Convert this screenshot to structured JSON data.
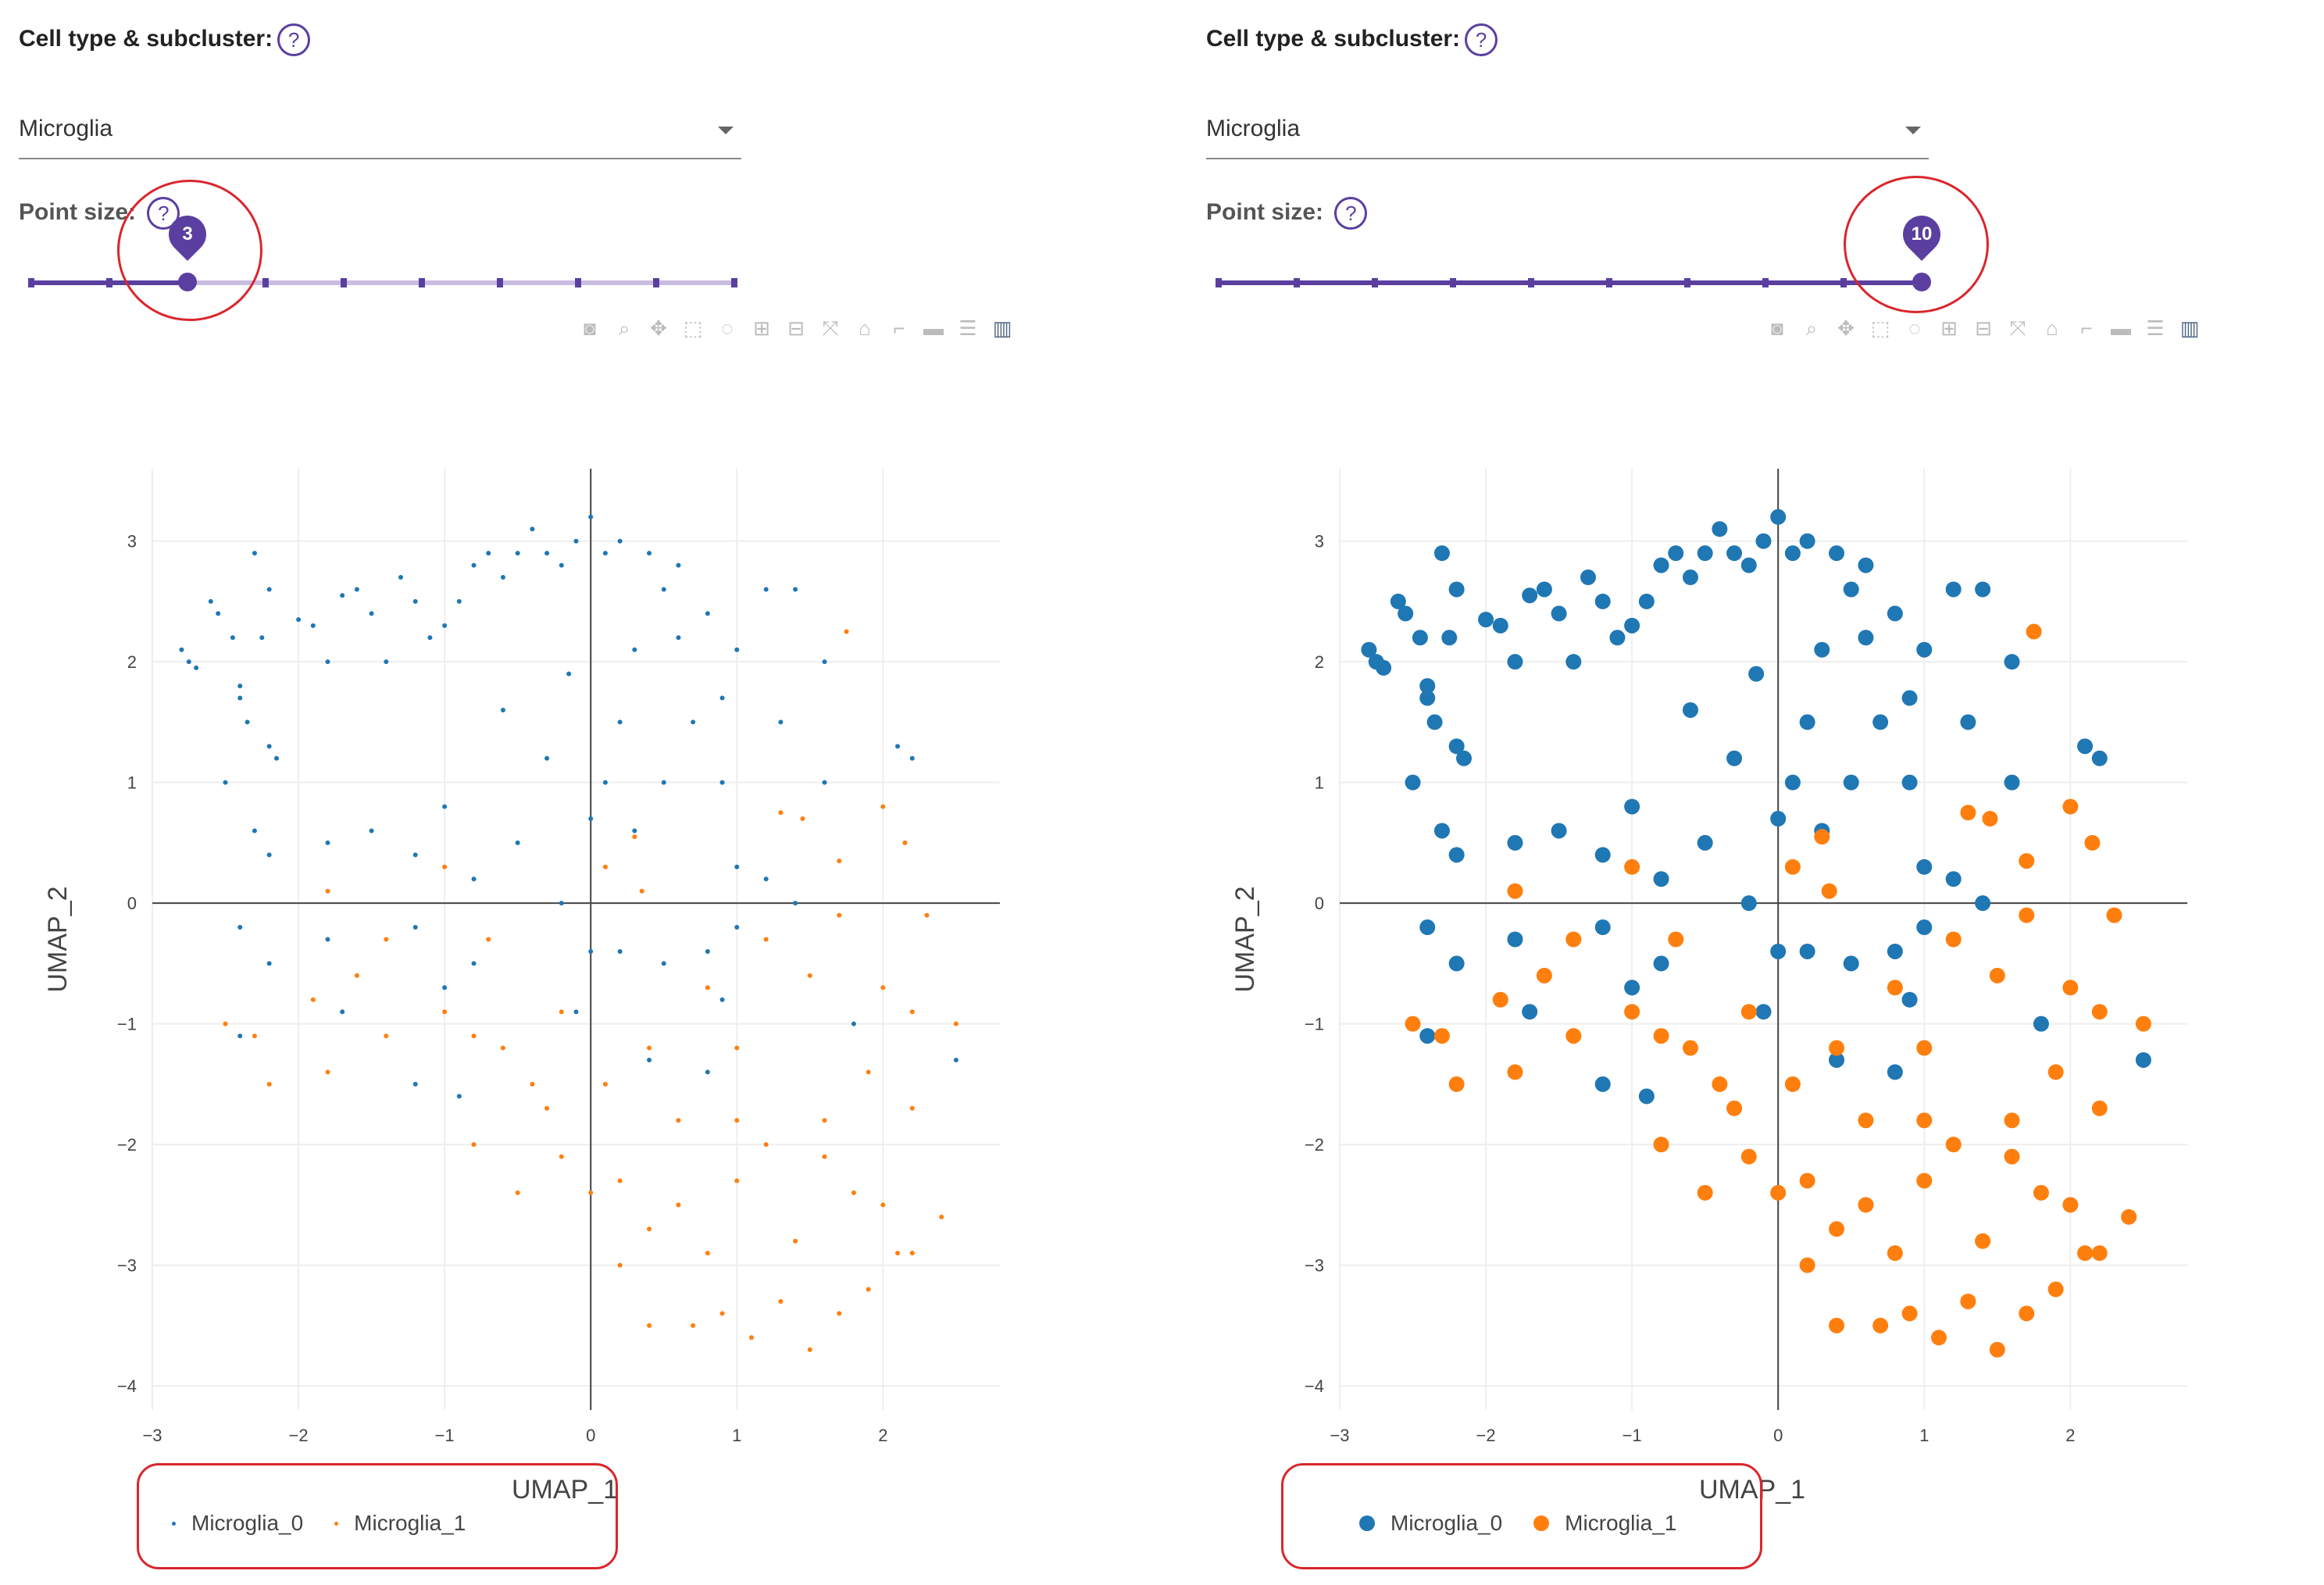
{
  "colors": {
    "series0": "#1f77b4",
    "series1": "#ff7f0e",
    "accent": "#5b3fa0",
    "annotation": "#d9262c"
  },
  "controls": {
    "cell_type_label": "Cell type & subcluster:",
    "help_glyph": "?",
    "point_size_label": "Point size:",
    "slider_min": 1,
    "slider_max": 10
  },
  "toolbar_icons": [
    "camera-icon",
    "zoom-icon",
    "pan-icon",
    "box-select-icon",
    "lasso-icon",
    "zoom-in-icon",
    "zoom-out-icon",
    "autoscale-icon",
    "reset-axes-icon",
    "spike-lines-icon",
    "hover-closest-icon",
    "hover-compare-icon",
    "plotly-logo-icon"
  ],
  "panels": [
    {
      "cell_type_value": "Microglia",
      "point_size": "3"
    },
    {
      "cell_type_value": "Microglia",
      "point_size": "10"
    }
  ],
  "chart_data": [
    {
      "type": "scatter",
      "xlabel": "UMAP_1",
      "ylabel": "UMAP_2",
      "xlim": [
        -3,
        2.8
      ],
      "ylim": [
        -4.2,
        3.6
      ],
      "grid": true,
      "legend_placement": "bottom-left",
      "xticks": [
        "−3",
        "−2",
        "−1",
        "0",
        "1",
        "2"
      ],
      "yticks": [
        "3",
        "2",
        "1",
        "0",
        "−1",
        "−2",
        "−3",
        "−4"
      ],
      "series": [
        {
          "name": "Microglia_0",
          "color": "#1f77b4",
          "marker_size": 3,
          "points": [
            [
              -2.8,
              2.1
            ],
            [
              -2.75,
              2.0
            ],
            [
              -2.7,
              1.95
            ],
            [
              -2.6,
              2.5
            ],
            [
              -2.55,
              2.4
            ],
            [
              -2.45,
              2.2
            ],
            [
              -2.4,
              1.8
            ],
            [
              -2.4,
              1.7
            ],
            [
              -2.35,
              1.5
            ],
            [
              -2.3,
              2.9
            ],
            [
              -2.25,
              2.2
            ],
            [
              -2.2,
              2.6
            ],
            [
              -2.2,
              1.3
            ],
            [
              -2.15,
              1.2
            ],
            [
              -2.0,
              2.35
            ],
            [
              -1.9,
              2.3
            ],
            [
              -1.8,
              2.0
            ],
            [
              -1.7,
              2.55
            ],
            [
              -1.6,
              2.6
            ],
            [
              -1.5,
              2.4
            ],
            [
              -1.4,
              2.0
            ],
            [
              -1.3,
              2.7
            ],
            [
              -1.2,
              2.5
            ],
            [
              -1.1,
              2.2
            ],
            [
              -1.0,
              2.3
            ],
            [
              -0.9,
              2.5
            ],
            [
              -0.8,
              2.8
            ],
            [
              -0.7,
              2.9
            ],
            [
              -0.6,
              2.7
            ],
            [
              -0.5,
              2.9
            ],
            [
              -0.4,
              3.1
            ],
            [
              -0.3,
              2.9
            ],
            [
              -0.2,
              2.8
            ],
            [
              -0.1,
              3.0
            ],
            [
              0.0,
              3.2
            ],
            [
              0.1,
              2.9
            ],
            [
              0.2,
              3.0
            ],
            [
              0.4,
              2.9
            ],
            [
              0.5,
              2.6
            ],
            [
              0.6,
              2.8
            ],
            [
              0.8,
              2.4
            ],
            [
              1.2,
              2.6
            ],
            [
              1.4,
              2.6
            ],
            [
              -2.5,
              1.0
            ],
            [
              -2.3,
              0.6
            ],
            [
              -2.2,
              0.4
            ],
            [
              -1.8,
              0.5
            ],
            [
              -1.5,
              0.6
            ],
            [
              -1.2,
              0.4
            ],
            [
              -1.0,
              0.8
            ],
            [
              -0.8,
              0.2
            ],
            [
              -0.5,
              0.5
            ],
            [
              -0.2,
              0.0
            ],
            [
              0.0,
              0.7
            ],
            [
              0.1,
              1.0
            ],
            [
              0.2,
              1.5
            ],
            [
              0.3,
              0.6
            ],
            [
              0.5,
              1.0
            ],
            [
              0.7,
              1.5
            ],
            [
              0.9,
              1.0
            ],
            [
              1.0,
              0.3
            ],
            [
              1.2,
              0.2
            ],
            [
              1.4,
              0.0
            ],
            [
              1.6,
              1.0
            ],
            [
              2.1,
              1.3
            ],
            [
              2.2,
              1.2
            ],
            [
              -2.4,
              -0.2
            ],
            [
              -2.2,
              -0.5
            ],
            [
              -1.8,
              -0.3
            ],
            [
              -1.7,
              -0.9
            ],
            [
              -1.2,
              -0.2
            ],
            [
              -1.0,
              -0.7
            ],
            [
              -0.8,
              -0.5
            ],
            [
              -0.1,
              -0.9
            ],
            [
              0.0,
              -0.4
            ],
            [
              0.2,
              -0.4
            ],
            [
              0.5,
              -0.5
            ],
            [
              0.8,
              -0.4
            ],
            [
              1.0,
              -0.2
            ],
            [
              0.9,
              -0.8
            ],
            [
              0.4,
              -1.3
            ],
            [
              0.8,
              -1.4
            ],
            [
              -0.9,
              -1.6
            ],
            [
              -1.2,
              -1.5
            ],
            [
              -2.4,
              -1.1
            ],
            [
              1.8,
              -1.0
            ],
            [
              2.5,
              -1.3
            ],
            [
              -0.3,
              1.2
            ],
            [
              -0.6,
              1.6
            ],
            [
              0.6,
              2.2
            ],
            [
              1.0,
              2.1
            ],
            [
              1.3,
              1.5
            ],
            [
              1.6,
              2.0
            ],
            [
              -0.15,
              1.9
            ],
            [
              0.3,
              2.1
            ],
            [
              0.9,
              1.7
            ]
          ]
        },
        {
          "name": "Microglia_1",
          "color": "#ff7f0e",
          "marker_size": 3,
          "points": [
            [
              1.75,
              2.25
            ],
            [
              1.3,
              0.75
            ],
            [
              1.45,
              0.7
            ],
            [
              2.0,
              0.8
            ],
            [
              2.15,
              0.5
            ],
            [
              1.7,
              0.35
            ],
            [
              0.1,
              0.3
            ],
            [
              0.3,
              0.55
            ],
            [
              0.35,
              0.1
            ],
            [
              -1.0,
              0.3
            ],
            [
              -1.8,
              0.1
            ],
            [
              -1.4,
              -0.3
            ],
            [
              -0.7,
              -0.3
            ],
            [
              -2.5,
              -1.0
            ],
            [
              -2.3,
              -1.1
            ],
            [
              -2.2,
              -1.5
            ],
            [
              -1.9,
              -0.8
            ],
            [
              -1.8,
              -1.4
            ],
            [
              -1.6,
              -0.6
            ],
            [
              -1.4,
              -1.1
            ],
            [
              -1.0,
              -0.9
            ],
            [
              -0.8,
              -1.1
            ],
            [
              -0.6,
              -1.2
            ],
            [
              -0.4,
              -1.5
            ],
            [
              -0.2,
              -0.9
            ],
            [
              0.1,
              -1.5
            ],
            [
              0.4,
              -1.2
            ],
            [
              0.8,
              -0.7
            ],
            [
              1.0,
              -1.2
            ],
            [
              1.2,
              -0.3
            ],
            [
              1.5,
              -0.6
            ],
            [
              1.7,
              -0.1
            ],
            [
              2.0,
              -0.7
            ],
            [
              2.2,
              -0.9
            ],
            [
              2.3,
              -0.1
            ],
            [
              2.5,
              -1.0
            ],
            [
              -0.8,
              -2.0
            ],
            [
              -0.5,
              -2.4
            ],
            [
              -0.2,
              -2.1
            ],
            [
              0.0,
              -2.4
            ],
            [
              0.2,
              -2.3
            ],
            [
              0.4,
              -2.7
            ],
            [
              0.6,
              -2.5
            ],
            [
              0.8,
              -2.9
            ],
            [
              1.0,
              -2.3
            ],
            [
              1.2,
              -2.0
            ],
            [
              1.4,
              -2.8
            ],
            [
              1.6,
              -2.1
            ],
            [
              1.8,
              -2.4
            ],
            [
              2.0,
              -2.5
            ],
            [
              2.2,
              -2.9
            ],
            [
              2.4,
              -2.6
            ],
            [
              0.2,
              -3.0
            ],
            [
              0.4,
              -3.5
            ],
            [
              0.7,
              -3.5
            ],
            [
              0.9,
              -3.4
            ],
            [
              1.1,
              -3.6
            ],
            [
              1.3,
              -3.3
            ],
            [
              1.5,
              -3.7
            ],
            [
              1.7,
              -3.4
            ],
            [
              1.9,
              -3.2
            ],
            [
              2.1,
              -2.9
            ],
            [
              1.0,
              -1.8
            ],
            [
              1.6,
              -1.8
            ],
            [
              1.9,
              -1.4
            ],
            [
              2.2,
              -1.7
            ],
            [
              -0.3,
              -1.7
            ],
            [
              0.6,
              -1.8
            ]
          ]
        }
      ]
    },
    {
      "type": "scatter",
      "xlabel": "UMAP_1",
      "ylabel": "UMAP_2",
      "xlim": [
        -3,
        2.8
      ],
      "ylim": [
        -4.2,
        3.6
      ],
      "grid": true,
      "legend_placement": "bottom-left",
      "xticks": [
        "−3",
        "−2",
        "−1",
        "0",
        "1",
        "2"
      ],
      "yticks": [
        "3",
        "2",
        "1",
        "0",
        "−1",
        "−2",
        "−3",
        "−4"
      ],
      "series": [
        {
          "name": "Microglia_0",
          "color": "#1f77b4",
          "marker_size": 10,
          "same_points_as": 0
        },
        {
          "name": "Microglia_1",
          "color": "#ff7f0e",
          "marker_size": 10,
          "same_points_as": 1
        }
      ]
    }
  ]
}
